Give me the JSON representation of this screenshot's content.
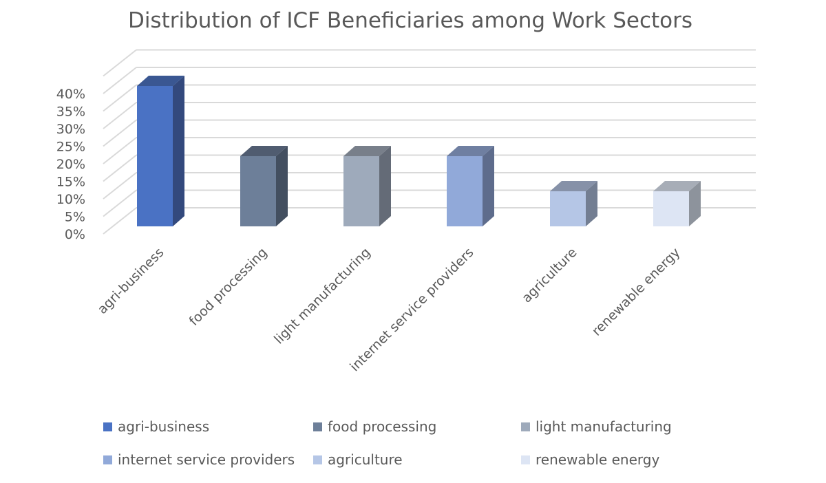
{
  "chart_data": {
    "type": "bar",
    "title": "Distribution of ICF Beneficiaries among Work Sectors",
    "categories": [
      "agri-business",
      "food processing",
      "light manufacturing",
      "internet service providers",
      "agriculture",
      "renewable energy"
    ],
    "values": [
      40,
      20,
      20,
      20,
      10,
      10
    ],
    "unit": "%",
    "ylim": [
      0,
      40
    ],
    "yticks": [
      "0%",
      "5%",
      "10%",
      "15%",
      "20%",
      "25%",
      "30%",
      "35%",
      "40%"
    ],
    "grid": true,
    "legend_position": "bottom",
    "colors": [
      "#4a72c4",
      "#6d7f99",
      "#9eaabb",
      "#91a9d9",
      "#b5c6e6",
      "#dde5f4"
    ],
    "side_colors": [
      "#33497d",
      "#434f60",
      "#646b77",
      "#5e6c8c",
      "#737e92",
      "#8d939c"
    ],
    "top_colors": [
      "#3a5792",
      "#505c70",
      "#787f8a",
      "#6f7fa1",
      "#8691a8",
      "#a7adb7"
    ]
  }
}
